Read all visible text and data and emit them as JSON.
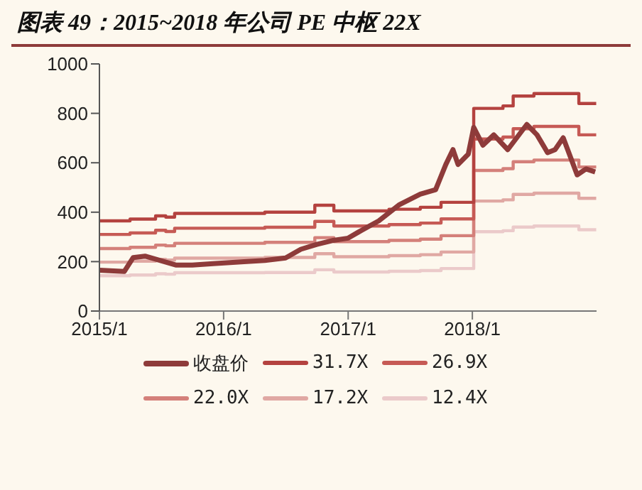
{
  "chart_data": {
    "type": "line",
    "title": "图表 49：2015~2018 年公司 PE 中枢 22X",
    "xlim": [
      "2015-01-01",
      "2019-01-01"
    ],
    "xticks": [
      {
        "value": "2015-01-01",
        "label": "2015/1"
      },
      {
        "value": "2016-01-01",
        "label": "2016/1"
      },
      {
        "value": "2017-01-01",
        "label": "2017/1"
      },
      {
        "value": "2018-01-01",
        "label": "2018/1"
      }
    ],
    "ylim": [
      0,
      1000
    ],
    "yticks": [
      0,
      200,
      400,
      600,
      800,
      1000
    ],
    "grid": false,
    "legend": "bottom",
    "series": [
      {
        "name": "收盘价",
        "color": "#8e3b3a",
        "x": [
          "2015-01-01",
          "2015-03-15",
          "2015-04-10",
          "2015-05-15",
          "2015-07-01",
          "2015-08-15",
          "2015-10-01",
          "2015-12-01",
          "2016-03-01",
          "2016-05-01",
          "2016-07-01",
          "2016-08-15",
          "2016-10-01",
          "2016-11-15",
          "2017-01-01",
          "2017-02-01",
          "2017-04-01",
          "2017-06-01",
          "2017-08-01",
          "2017-09-15",
          "2017-10-15",
          "2017-11-05",
          "2017-11-20",
          "2017-12-20",
          "2018-01-05",
          "2018-02-01",
          "2018-03-05",
          "2018-04-15",
          "2018-06-10",
          "2018-07-10",
          "2018-08-10",
          "2018-09-01",
          "2018-09-25",
          "2018-11-05",
          "2018-12-01",
          "2018-12-28"
        ],
        "values": [
          165,
          160,
          216,
          222,
          204,
          186,
          186,
          192,
          200,
          205,
          215,
          250,
          270,
          285,
          295,
          320,
          365,
          431,
          473,
          491,
          593,
          653,
          593,
          635,
          743,
          671,
          713,
          653,
          755,
          713,
          641,
          653,
          701,
          551,
          575,
          563
        ]
      },
      {
        "name": "31.7X",
        "type": "step",
        "color": "#b4423f",
        "x": [
          "2015-01-01",
          "2015-04-01",
          "2015-06-15",
          "2015-07-15",
          "2015-08-10",
          "2016-05-01",
          "2016-09-25",
          "2016-11-20",
          "2017-05-01",
          "2017-08-01",
          "2017-10-01",
          "2018-01-05",
          "2018-04-01",
          "2018-05-01",
          "2018-07-01",
          "2018-11-10",
          "2018-12-31"
        ],
        "values": [
          365,
          372,
          385,
          380,
          395,
          400,
          428,
          405,
          412,
          420,
          440,
          820,
          830,
          870,
          880,
          840,
          840
        ]
      },
      {
        "name": "26.9X",
        "type": "step",
        "color": "#c65a55",
        "x": [
          "2015-01-01",
          "2015-04-01",
          "2015-06-15",
          "2015-07-15",
          "2015-08-10",
          "2016-05-01",
          "2016-09-25",
          "2016-11-20",
          "2017-05-01",
          "2017-08-01",
          "2017-10-01",
          "2018-01-05",
          "2018-04-01",
          "2018-05-01",
          "2018-07-01",
          "2018-11-10",
          "2018-12-31"
        ],
        "values": [
          310,
          316,
          327,
          322,
          335,
          339,
          363,
          344,
          350,
          356,
          373,
          696,
          704,
          738,
          747,
          713,
          713
        ]
      },
      {
        "name": "22.0X",
        "type": "step",
        "color": "#d4807a",
        "x": [
          "2015-01-01",
          "2015-04-01",
          "2015-06-15",
          "2015-07-15",
          "2015-08-10",
          "2016-05-01",
          "2016-09-25",
          "2016-11-20",
          "2017-05-01",
          "2017-08-01",
          "2017-10-01",
          "2018-01-05",
          "2018-04-01",
          "2018-05-01",
          "2018-07-01",
          "2018-11-10",
          "2018-12-31"
        ],
        "values": [
          253,
          258,
          267,
          264,
          274,
          278,
          297,
          281,
          286,
          291,
          305,
          569,
          576,
          604,
          611,
          583,
          583
        ]
      },
      {
        "name": "17.2X",
        "type": "step",
        "color": "#e0a8a3",
        "x": [
          "2015-01-01",
          "2015-04-01",
          "2015-06-15",
          "2015-07-15",
          "2015-08-10",
          "2016-05-01",
          "2016-09-25",
          "2016-11-20",
          "2017-05-01",
          "2017-08-01",
          "2017-10-01",
          "2018-01-05",
          "2018-04-01",
          "2018-05-01",
          "2018-07-01",
          "2018-11-10",
          "2018-12-31"
        ],
        "values": [
          198,
          202,
          209,
          206,
          214,
          217,
          232,
          220,
          224,
          228,
          239,
          445,
          450,
          472,
          477,
          456,
          456
        ]
      },
      {
        "name": "12.4X",
        "type": "step",
        "color": "#ebcaca",
        "x": [
          "2015-01-01",
          "2015-04-01",
          "2015-06-15",
          "2015-07-15",
          "2015-08-10",
          "2016-05-01",
          "2016-09-25",
          "2016-11-20",
          "2017-05-01",
          "2017-08-01",
          "2017-10-01",
          "2018-01-05",
          "2018-04-01",
          "2018-05-01",
          "2018-07-01",
          "2018-11-10",
          "2018-12-31"
        ],
        "values": [
          143,
          146,
          151,
          149,
          155,
          156,
          167,
          158,
          161,
          164,
          172,
          321,
          325,
          340,
          344,
          329,
          329
        ]
      }
    ]
  }
}
